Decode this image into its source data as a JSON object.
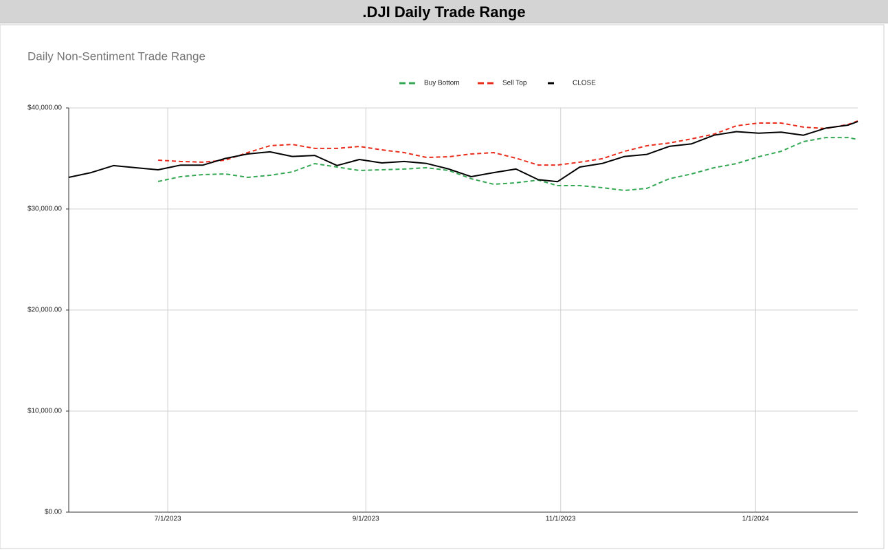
{
  "page_title": ".DJI Daily Trade Range",
  "chart_data": {
    "type": "line",
    "title": "Daily Non-Sentiment Trade Range",
    "x": [
      "5/31/2023",
      "6/7/2023",
      "6/14/2023",
      "6/21/2023",
      "6/28/2023",
      "7/5/2023",
      "7/12/2023",
      "7/19/2023",
      "7/26/2023",
      "8/2/2023",
      "8/9/2023",
      "8/16/2023",
      "8/23/2023",
      "8/30/2023",
      "9/6/2023",
      "9/13/2023",
      "9/20/2023",
      "9/27/2023",
      "10/4/2023",
      "10/11/2023",
      "10/18/2023",
      "10/25/2023",
      "10/31/2023",
      "11/7/2023",
      "11/14/2023",
      "11/21/2023",
      "11/28/2023",
      "12/5/2023",
      "12/12/2023",
      "12/19/2023",
      "12/26/2023",
      "1/2/2024",
      "1/9/2024",
      "1/16/2024",
      "1/23/2024",
      "1/30/2024",
      "2/2/2024"
    ],
    "series": [
      {
        "name": "Buy Bottom",
        "color": "#34a853",
        "line_style": "dashed",
        "values": [
          null,
          null,
          null,
          null,
          32720,
          33200,
          33400,
          33470,
          33130,
          33330,
          33670,
          34490,
          34150,
          33810,
          33880,
          33950,
          34080,
          33810,
          32990,
          32450,
          32590,
          32860,
          32310,
          32310,
          32110,
          31840,
          32040,
          32990,
          33470,
          34080,
          34490,
          35170,
          35710,
          36670,
          37070,
          37070,
          36870
        ]
      },
      {
        "name": "Sell Top",
        "color": "#ea2a1a",
        "line_style": "dashed",
        "values": [
          null,
          null,
          null,
          null,
          34830,
          34700,
          34630,
          34830,
          35580,
          36260,
          36390,
          35990,
          35990,
          36190,
          35850,
          35580,
          35100,
          35170,
          35440,
          35580,
          35030,
          34350,
          34350,
          34630,
          34970,
          35710,
          36260,
          36530,
          36940,
          37410,
          38230,
          38500,
          38500,
          38100,
          37960,
          38370,
          38710
        ]
      },
      {
        "name": "CLOSE",
        "color": "#000000",
        "line_style": "solid",
        "values": [
          33130,
          33600,
          34290,
          34080,
          33880,
          34340,
          34340,
          35000,
          35440,
          35650,
          35200,
          35300,
          34300,
          34900,
          34560,
          34700,
          34500,
          33950,
          33200,
          33600,
          33950,
          32900,
          32700,
          34150,
          34500,
          35200,
          35400,
          36200,
          36450,
          37300,
          37650,
          37500,
          37600,
          37300,
          38000,
          38300,
          38650
        ]
      }
    ],
    "xlim": [
      "5/31/2023",
      "2/2/2024"
    ],
    "xticks": [
      "7/1/2023",
      "9/1/2023",
      "11/1/2023",
      "1/1/2024"
    ],
    "ylim": [
      0,
      40000
    ],
    "yticks": [
      {
        "value": 0,
        "label": "$0.00"
      },
      {
        "value": 10000,
        "label": "$10,000.00"
      },
      {
        "value": 20000,
        "label": "$20,000.00"
      },
      {
        "value": 30000,
        "label": "$30,000.00"
      },
      {
        "value": 40000,
        "label": "$40,000.00"
      }
    ],
    "grid": true,
    "legend": "top"
  }
}
